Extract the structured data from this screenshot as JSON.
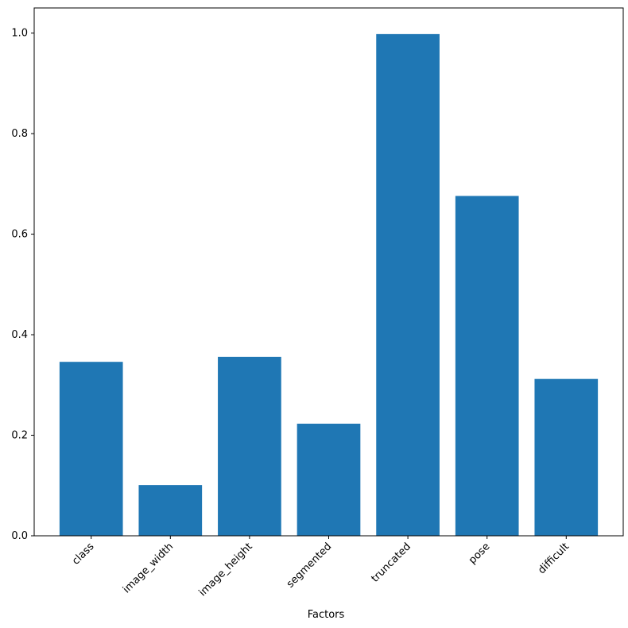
{
  "chart_data": {
    "type": "bar",
    "x_label": "Factors",
    "categories": [
      "class",
      "image_width",
      "image_height",
      "segmented",
      "truncated",
      "pose",
      "difficult"
    ],
    "values": [
      0.346,
      0.101,
      0.356,
      0.223,
      0.998,
      0.676,
      0.312
    ],
    "color": "#1f77b4",
    "ylim": [
      0,
      1.05
    ],
    "yticks": [
      {
        "value": 0,
        "label": "0.0"
      },
      {
        "value": 0.2,
        "label": "0.2"
      },
      {
        "value": 0.4,
        "label": "0.4"
      },
      {
        "value": 0.6,
        "label": "0.6"
      },
      {
        "value": 0.8,
        "label": "0.8"
      },
      {
        "value": 1,
        "label": "1.0"
      }
    ],
    "grid": false
  }
}
